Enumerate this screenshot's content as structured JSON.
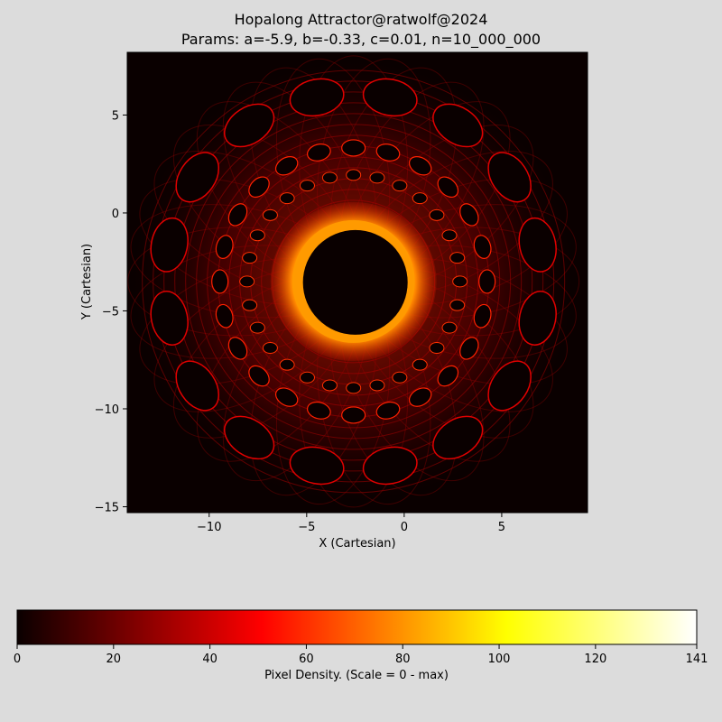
{
  "chart_data": [
    {
      "type": "heatmap",
      "title": "Hopalong Attractor@ratwolf@2024",
      "subtitle": "Params: a=-5.9, b=-0.33, c=0.01, n=10_000_000",
      "xlabel": "X (Cartesian)",
      "ylabel": "Y (Cartesian)",
      "xlim": [
        -14.2,
        9.4
      ],
      "ylim": [
        -15.3,
        8.2
      ],
      "xticks": [
        -10,
        -5,
        0,
        5
      ],
      "yticks": [
        5,
        0,
        -5,
        -10,
        -15
      ],
      "params": {
        "a": -5.9,
        "b": -0.33,
        "c": 0.01,
        "n": 10000000
      },
      "grid": false,
      "colormap": "hot",
      "background": "#0a0000"
    },
    {
      "type": "colorbar",
      "label": "Pixel Density. (Scale = 0 - max)",
      "ticks": [
        0,
        20,
        40,
        60,
        80,
        100,
        120,
        141
      ],
      "range": [
        0,
        141
      ],
      "colors": [
        "#0a0000",
        "#ff0000",
        "#ffff00",
        "#ffffff"
      ]
    }
  ]
}
